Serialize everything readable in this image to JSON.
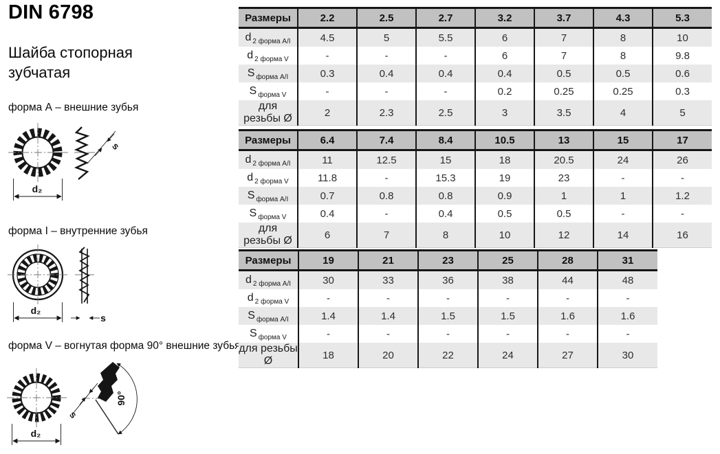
{
  "page": {
    "standard": "DIN 6798",
    "product_name": "Шайба стопорная зубчатая"
  },
  "forms": [
    {
      "caption": "форма А – внешние зубья",
      "diameter_label": "d₂",
      "thickness_label": "s"
    },
    {
      "caption": "форма I – внутренние зубья",
      "diameter_label": "d₂",
      "thickness_label": "s"
    },
    {
      "caption": "форма V – вогнутая форма 90° внешние зубья",
      "diameter_label": "d₂",
      "thickness_label": "s",
      "angle_label": "90°"
    }
  ],
  "tables": [
    {
      "header_label": "Размеры",
      "sizes": [
        "2.2",
        "2.5",
        "2.7",
        "3.2",
        "3.7",
        "4.3",
        "5.3"
      ],
      "rows": [
        {
          "label_main": "d",
          "label_sub": "2 форма A/I",
          "values": [
            "4.5",
            "5",
            "5.5",
            "6",
            "7",
            "8",
            "10"
          ]
        },
        {
          "label_main": "d",
          "label_sub": "2 форма V",
          "values": [
            "-",
            "-",
            "-",
            "6",
            "7",
            "8",
            "9.8"
          ]
        },
        {
          "label_main": "S",
          "label_sub": "форма A/I",
          "values": [
            "0.3",
            "0.4",
            "0.4",
            "0.4",
            "0.5",
            "0.5",
            "0.6"
          ]
        },
        {
          "label_main": "S",
          "label_sub": "форма V",
          "values": [
            "-",
            "-",
            "-",
            "0.2",
            "0.25",
            "0.25",
            "0.3"
          ]
        },
        {
          "label_main": "для резьбы Ø",
          "label_sub": "",
          "values": [
            "2",
            "2.3",
            "2.5",
            "3",
            "3.5",
            "4",
            "5"
          ]
        }
      ]
    },
    {
      "header_label": "Размеры",
      "sizes": [
        "6.4",
        "7.4",
        "8.4",
        "10.5",
        "13",
        "15",
        "17"
      ],
      "rows": [
        {
          "label_main": "d",
          "label_sub": "2 форма A/I",
          "values": [
            "11",
            "12.5",
            "15",
            "18",
            "20.5",
            "24",
            "26"
          ]
        },
        {
          "label_main": "d",
          "label_sub": "2 форма V",
          "values": [
            "11.8",
            "-",
            "15.3",
            "19",
            "23",
            "-",
            "-"
          ]
        },
        {
          "label_main": "S",
          "label_sub": "форма A/I",
          "values": [
            "0.7",
            "0.8",
            "0.8",
            "0.9",
            "1",
            "1",
            "1.2"
          ]
        },
        {
          "label_main": "S",
          "label_sub": "форма V",
          "values": [
            "0.4",
            "-",
            "0.4",
            "0.5",
            "0.5",
            "-",
            "-"
          ]
        },
        {
          "label_main": "для резьбы Ø",
          "label_sub": "",
          "values": [
            "6",
            "7",
            "8",
            "10",
            "12",
            "14",
            "16"
          ]
        }
      ]
    },
    {
      "header_label": "Размеры",
      "sizes": [
        "19",
        "21",
        "23",
        "25",
        "28",
        "31"
      ],
      "rows": [
        {
          "label_main": "d",
          "label_sub": "2 форма A/I",
          "values": [
            "30",
            "33",
            "36",
            "38",
            "44",
            "48"
          ]
        },
        {
          "label_main": "d",
          "label_sub": "2 форма V",
          "values": [
            "-",
            "-",
            "-",
            "-",
            "-",
            "-"
          ]
        },
        {
          "label_main": "S",
          "label_sub": "форма A/I",
          "values": [
            "1.4",
            "1.4",
            "1.5",
            "1.5",
            "1.6",
            "1.6"
          ]
        },
        {
          "label_main": "S",
          "label_sub": "форма V",
          "values": [
            "-",
            "-",
            "-",
            "-",
            "-",
            "-"
          ]
        },
        {
          "label_main": "для резьбы Ø",
          "label_sub": "",
          "values": [
            "18",
            "20",
            "22",
            "24",
            "27",
            "30"
          ]
        }
      ]
    }
  ],
  "colors": {
    "table_header_bg": "#c1c1c1",
    "table_alt_row_bg": "#e8e8e8",
    "table_border": "#161616",
    "drawing_line": "#161616"
  }
}
